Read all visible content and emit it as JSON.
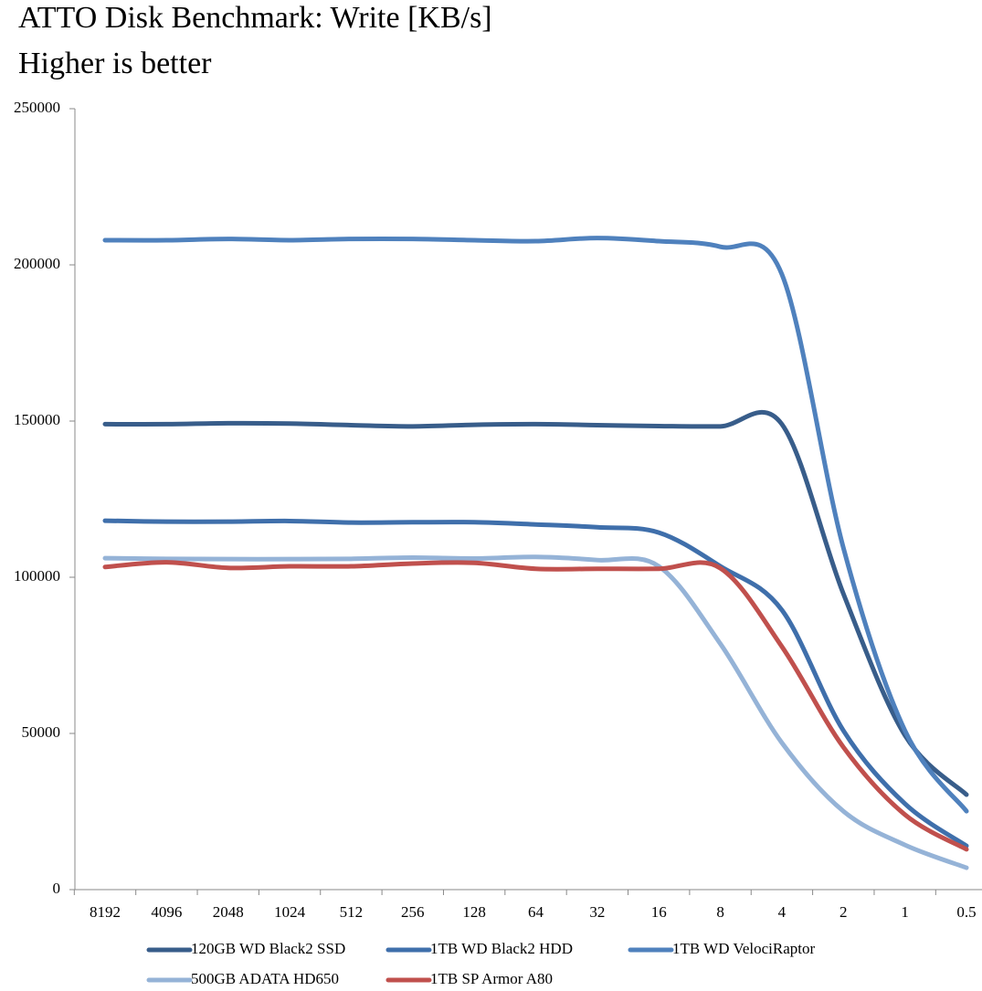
{
  "chart_data": {
    "type": "line",
    "title": "ATTO Disk Benchmark: Write [KB/s]",
    "subtitle": "Higher is better",
    "smooth": true,
    "grid": false,
    "legend": "bottom",
    "categories": [
      "8192",
      "4096",
      "2048",
      "1024",
      "512",
      "256",
      "128",
      "64",
      "32",
      "16",
      "8",
      "4",
      "2",
      "1",
      "0.5"
    ],
    "ylim": [
      0,
      250000
    ],
    "yticks": [
      0,
      50000,
      100000,
      150000,
      200000,
      250000
    ],
    "series": [
      {
        "name": "120GB WD Black2 SSD",
        "color": "#385d8a",
        "values": [
          149000,
          149000,
          149300,
          149200,
          148700,
          148300,
          148800,
          149000,
          148700,
          148400,
          148300,
          149000,
          94700,
          49400,
          30400
        ]
      },
      {
        "name": "1TB WD Black2 HDD",
        "color": "#3f6fab",
        "values": [
          118100,
          117800,
          117800,
          118000,
          117500,
          117600,
          117600,
          116900,
          116000,
          114300,
          103500,
          89500,
          50900,
          27500,
          14000
        ]
      },
      {
        "name": "1TB WD VelociRaptor",
        "color": "#4f81bd",
        "values": [
          207900,
          207900,
          208300,
          207900,
          208300,
          208300,
          207900,
          207600,
          208600,
          207600,
          205800,
          197000,
          109400,
          50900,
          25100
        ]
      },
      {
        "name": "500GB ADATA HD650",
        "color": "#95b3d7",
        "values": [
          106100,
          105900,
          105800,
          105800,
          105900,
          106300,
          106000,
          106500,
          105500,
          103500,
          78700,
          47000,
          25100,
          14300,
          7000
        ]
      },
      {
        "name": "1TB SP Armor A80",
        "color": "#c0504d",
        "values": [
          103300,
          104800,
          103000,
          103500,
          103500,
          104400,
          104600,
          102700,
          102700,
          102700,
          102900,
          77800,
          45600,
          24000,
          12900
        ]
      }
    ]
  }
}
